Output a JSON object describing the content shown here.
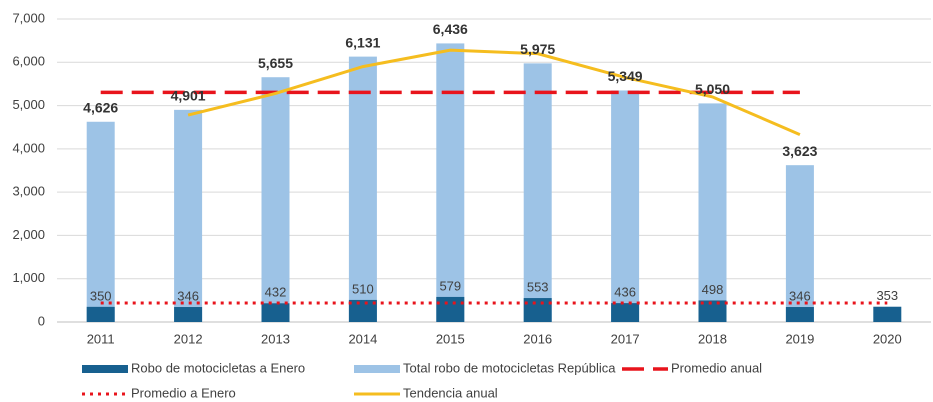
{
  "chart_data": {
    "type": "bar",
    "categories": [
      "2011",
      "2012",
      "2013",
      "2014",
      "2015",
      "2016",
      "2017",
      "2018",
      "2019",
      "2020"
    ],
    "series": [
      {
        "name": "Robo de motocicletas a Enero",
        "kind": "bar",
        "color": "#17608f",
        "values": [
          350,
          346,
          432,
          510,
          579,
          553,
          436,
          498,
          346,
          353
        ]
      },
      {
        "name": "Total robo de motocicletas República",
        "kind": "bar",
        "color": "#9dc3e6",
        "values": [
          4626,
          4901,
          5655,
          6131,
          6436,
          5975,
          5349,
          5050,
          3623,
          null
        ],
        "value_labels": [
          "4,626",
          "4,901",
          "5,655",
          "6,131",
          "6,436",
          "5,975",
          "5,349",
          "5,050",
          "3,623",
          null
        ]
      },
      {
        "name": "Promedio anual",
        "kind": "line",
        "line_style": "dashed",
        "color": "#e8141c",
        "values": [
          5305,
          5305,
          5305,
          5305,
          5305,
          5305,
          5305,
          5305,
          5305,
          null
        ]
      },
      {
        "name": "Promedio a Enero",
        "kind": "line",
        "line_style": "dotted",
        "color": "#e8141c",
        "values": [
          440,
          440,
          440,
          440,
          440,
          440,
          440,
          440,
          440,
          440
        ]
      },
      {
        "name": "Tendencia anual",
        "kind": "line",
        "line_style": "solid",
        "color": "#f5bd1f",
        "values": [
          null,
          4780,
          5280,
          5900,
          6280,
          6200,
          5650,
          5200,
          4330,
          null
        ]
      }
    ],
    "ylim": [
      0,
      7000
    ],
    "yticks": [
      0,
      {
        "value": 1000,
        "label": "1,000"
      },
      {
        "value": 2000,
        "label": "2,000"
      },
      {
        "value": 3000,
        "label": "3,000"
      },
      {
        "value": 4000,
        "label": "4,000"
      },
      {
        "value": 5000,
        "label": "5,000"
      },
      {
        "value": 6000,
        "label": "6,000"
      },
      {
        "value": 7000,
        "label": "7,000"
      }
    ],
    "grid": true,
    "legend": "bottom"
  }
}
